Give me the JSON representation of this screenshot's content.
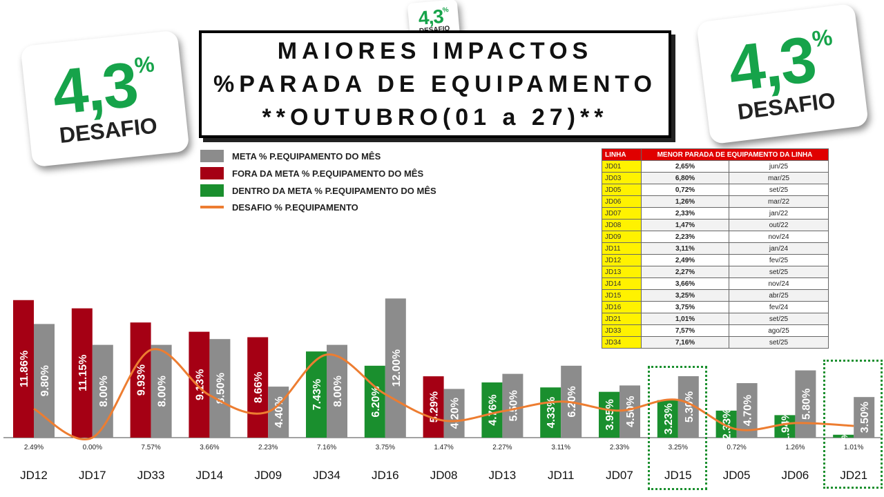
{
  "badges": {
    "number": "4,3",
    "percent": "%",
    "word": "DESAFIO"
  },
  "title": {
    "line1": "MAIORES IMPACTOS",
    "line2": "%PARADA DE EQUIPAMENTO",
    "line3": "**OUTUBRO(01 a 27)**"
  },
  "legend": [
    {
      "label": "META % P.EQUIPAMENTO DO MÊS",
      "color": "#8c8c8c",
      "kind": "box"
    },
    {
      "label": "FORA DA META % P.EQUIPAMENTO DO MÊS",
      "color": "#a50014",
      "kind": "box"
    },
    {
      "label": "DENTRO DA META % P.EQUIPAMENTO DO MÊS",
      "color": "#1a8f2e",
      "kind": "box"
    },
    {
      "label": "DESAFIO % P.EQUIPAMENTO",
      "color": "#ed7d31",
      "kind": "line"
    }
  ],
  "reference_table": {
    "headers": [
      "LINHA",
      "MENOR PARADA DE EQUIPAMENTO DA LINHA"
    ],
    "rows": [
      {
        "line": "JD01",
        "value": "2,65%",
        "date": "jun/25"
      },
      {
        "line": "JD03",
        "value": "6,80%",
        "date": "mar/25"
      },
      {
        "line": "JD05",
        "value": "0,72%",
        "date": "set/25"
      },
      {
        "line": "JD06",
        "value": "1,26%",
        "date": "mar/22"
      },
      {
        "line": "JD07",
        "value": "2,33%",
        "date": "jan/22"
      },
      {
        "line": "JD08",
        "value": "1,47%",
        "date": "out/22"
      },
      {
        "line": "JD09",
        "value": "2,23%",
        "date": "nov/24"
      },
      {
        "line": "JD11",
        "value": "3,11%",
        "date": "jan/24"
      },
      {
        "line": "JD12",
        "value": "2,49%",
        "date": "fev/25"
      },
      {
        "line": "JD13",
        "value": "2,27%",
        "date": "set/25"
      },
      {
        "line": "JD14",
        "value": "3,66%",
        "date": "nov/24"
      },
      {
        "line": "JD15",
        "value": "3,25%",
        "date": "abr/25"
      },
      {
        "line": "JD16",
        "value": "3,75%",
        "date": "fev/24"
      },
      {
        "line": "JD21",
        "value": "1,01%",
        "date": "set/25"
      },
      {
        "line": "JD33",
        "value": "7,57%",
        "date": "ago/25"
      },
      {
        "line": "JD34",
        "value": "7,16%",
        "date": "set/25"
      }
    ]
  },
  "colors": {
    "meta": "#8c8c8c",
    "fora": "#a50014",
    "dentro": "#1a8f2e",
    "desafio": "#ed7d31"
  },
  "chart_data": {
    "type": "bar",
    "categories": [
      "JD12",
      "JD17",
      "JD33",
      "JD14",
      "JD09",
      "JD34",
      "JD16",
      "JD08",
      "JD13",
      "JD11",
      "JD07",
      "JD15",
      "JD05",
      "JD06",
      "JD21"
    ],
    "series": [
      {
        "name": "FORA DA META / DENTRO DA META % P.EQUIPAMENTO DO MÊS",
        "values": [
          11.86,
          11.15,
          9.93,
          9.13,
          8.66,
          7.43,
          6.2,
          5.29,
          4.76,
          4.33,
          3.95,
          3.23,
          2.33,
          1.94,
          0.25
        ],
        "labels": [
          "11.86%",
          "11.15%",
          "9.93%",
          "9.13%",
          "8.66%",
          "7.43%",
          "6.20%",
          "5.29%",
          "4.76%",
          "4.33%",
          "3.95%",
          "3.23%",
          "2.33%",
          "1.94%",
          "0.25%"
        ],
        "status": [
          "fora",
          "fora",
          "fora",
          "fora",
          "fora",
          "dentro",
          "dentro",
          "fora",
          "dentro",
          "dentro",
          "dentro",
          "dentro",
          "dentro",
          "dentro",
          "dentro"
        ]
      },
      {
        "name": "META % P.EQUIPAMENTO DO MÊS",
        "values": [
          9.8,
          8.0,
          8.0,
          8.5,
          4.4,
          8.0,
          12.0,
          4.2,
          5.5,
          6.2,
          4.5,
          5.3,
          4.7,
          5.8,
          3.5
        ],
        "labels": [
          "9.80%",
          "8.00%",
          "8.00%",
          "8.50%",
          "4.40%",
          "8.00%",
          "12.00%",
          "4.20%",
          "5.50%",
          "6.20%",
          "4.50%",
          "5.30%",
          "4.70%",
          "5.80%",
          "3.50%"
        ]
      },
      {
        "name": "DESAFIO % P.EQUIPAMENTO",
        "values": [
          2.49,
          0.0,
          7.57,
          3.66,
          2.23,
          7.16,
          3.75,
          1.47,
          2.27,
          3.11,
          2.33,
          3.25,
          0.72,
          1.26,
          1.01
        ],
        "labels": [
          "2.49%",
          "0.00%",
          "7.57%",
          "3.66%",
          "2.23%",
          "7.16%",
          "3.75%",
          "1.47%",
          "2.27%",
          "3.11%",
          "2.33%",
          "3.25%",
          "0.72%",
          "1.26%",
          "1.01%"
        ]
      }
    ],
    "highlighted": [
      "JD15",
      "JD21"
    ],
    "ylim": [
      0,
      12.3
    ],
    "grid": false
  }
}
